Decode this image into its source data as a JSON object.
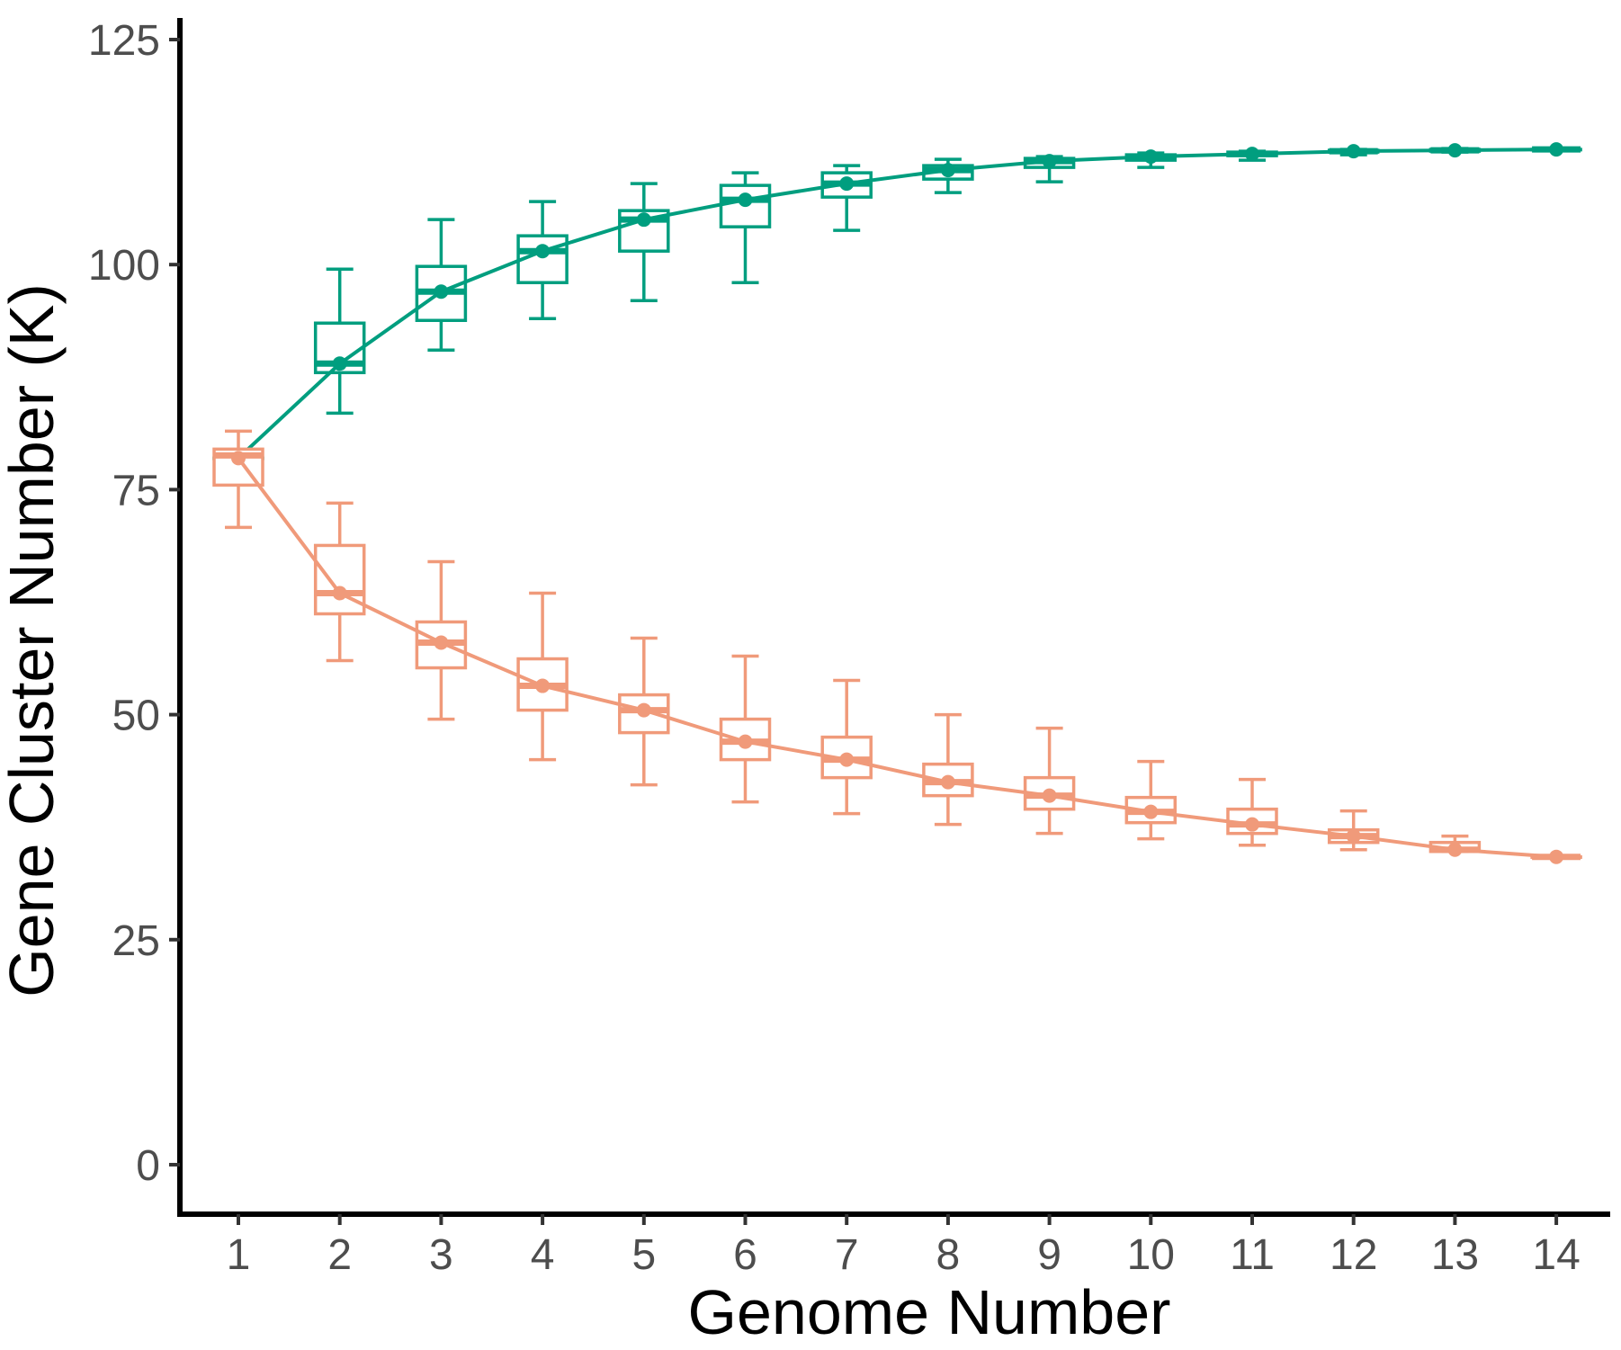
{
  "chart_data": {
    "type": "line",
    "subtype": "boxplot-with-mean-line",
    "title": "",
    "xlabel": "Genome Number",
    "ylabel": "Gene Cluster Number (K)",
    "x_ticks": [
      "1",
      "2",
      "3",
      "4",
      "5",
      "6",
      "7",
      "8",
      "9",
      "10",
      "11",
      "12",
      "13",
      "14"
    ],
    "y_ticks": [
      "0",
      "25",
      "50",
      "75",
      "100",
      "125"
    ],
    "ylim": [
      -5.5,
      127
    ],
    "grid": false,
    "legend": "none",
    "series": [
      {
        "id": "pan",
        "color": "#009e7f",
        "line": [
          78.5,
          89.0,
          97.0,
          101.5,
          105.0,
          107.2,
          109.0,
          110.5,
          111.5,
          112.0,
          112.3,
          112.6,
          112.7,
          112.8
        ],
        "boxes": [
          {
            "min": 78.5,
            "q1": 78.5,
            "median": 78.5,
            "q3": 78.5,
            "max": 78.5
          },
          {
            "min": 83.5,
            "q1": 88.0,
            "median": 89.0,
            "q3": 93.5,
            "max": 99.5
          },
          {
            "min": 90.5,
            "q1": 93.8,
            "median": 97.0,
            "q3": 99.8,
            "max": 105.0
          },
          {
            "min": 94.0,
            "q1": 98.0,
            "median": 101.5,
            "q3": 103.2,
            "max": 107.0
          },
          {
            "min": 96.0,
            "q1": 101.5,
            "median": 105.0,
            "q3": 106.0,
            "max": 109.0
          },
          {
            "min": 98.0,
            "q1": 104.2,
            "median": 107.2,
            "q3": 108.8,
            "max": 110.2
          },
          {
            "min": 103.8,
            "q1": 107.5,
            "median": 109.0,
            "q3": 110.2,
            "max": 111.0
          },
          {
            "min": 108.0,
            "q1": 109.5,
            "median": 110.5,
            "q3": 111.0,
            "max": 111.7
          },
          {
            "min": 109.2,
            "q1": 110.8,
            "median": 111.5,
            "q3": 111.8,
            "max": 112.0
          },
          {
            "min": 110.8,
            "q1": 111.6,
            "median": 112.0,
            "q3": 112.2,
            "max": 112.4
          },
          {
            "min": 111.6,
            "q1": 112.1,
            "median": 112.3,
            "q3": 112.5,
            "max": 112.6
          },
          {
            "min": 112.2,
            "q1": 112.5,
            "median": 112.6,
            "q3": 112.7,
            "max": 112.8
          },
          {
            "min": 112.5,
            "q1": 112.6,
            "median": 112.7,
            "q3": 112.8,
            "max": 112.9
          },
          {
            "min": 112.8,
            "q1": 112.8,
            "median": 112.8,
            "q3": 112.8,
            "max": 112.8
          }
        ]
      },
      {
        "id": "core",
        "color": "#f09a7a",
        "line": [
          78.5,
          63.5,
          58.0,
          53.2,
          50.5,
          47.0,
          45.0,
          42.5,
          41.0,
          39.2,
          37.8,
          36.5,
          35.0,
          34.2
        ],
        "boxes": [
          {
            "min": 70.8,
            "q1": 75.5,
            "median": 78.8,
            "q3": 79.5,
            "max": 81.5
          },
          {
            "min": 56.0,
            "q1": 61.2,
            "median": 63.5,
            "q3": 68.8,
            "max": 73.5
          },
          {
            "min": 49.5,
            "q1": 55.2,
            "median": 58.0,
            "q3": 60.3,
            "max": 67.0
          },
          {
            "min": 45.0,
            "q1": 50.5,
            "median": 53.2,
            "q3": 56.2,
            "max": 63.5
          },
          {
            "min": 42.2,
            "q1": 48.0,
            "median": 50.5,
            "q3": 52.2,
            "max": 58.5
          },
          {
            "min": 40.3,
            "q1": 45.0,
            "median": 47.0,
            "q3": 49.5,
            "max": 56.5
          },
          {
            "min": 39.0,
            "q1": 43.0,
            "median": 45.0,
            "q3": 47.5,
            "max": 53.8
          },
          {
            "min": 37.8,
            "q1": 41.0,
            "median": 42.5,
            "q3": 44.5,
            "max": 50.0
          },
          {
            "min": 36.8,
            "q1": 39.5,
            "median": 41.0,
            "q3": 43.0,
            "max": 48.5
          },
          {
            "min": 36.2,
            "q1": 38.0,
            "median": 39.2,
            "q3": 40.8,
            "max": 44.8
          },
          {
            "min": 35.5,
            "q1": 36.8,
            "median": 37.8,
            "q3": 39.5,
            "max": 42.8
          },
          {
            "min": 35.0,
            "q1": 35.8,
            "median": 36.5,
            "q3": 37.2,
            "max": 39.3
          },
          {
            "min": 34.8,
            "q1": 34.8,
            "median": 35.0,
            "q3": 35.8,
            "max": 36.5
          },
          {
            "min": 34.2,
            "q1": 34.2,
            "median": 34.2,
            "q3": 34.2,
            "max": 34.2
          }
        ]
      }
    ]
  }
}
